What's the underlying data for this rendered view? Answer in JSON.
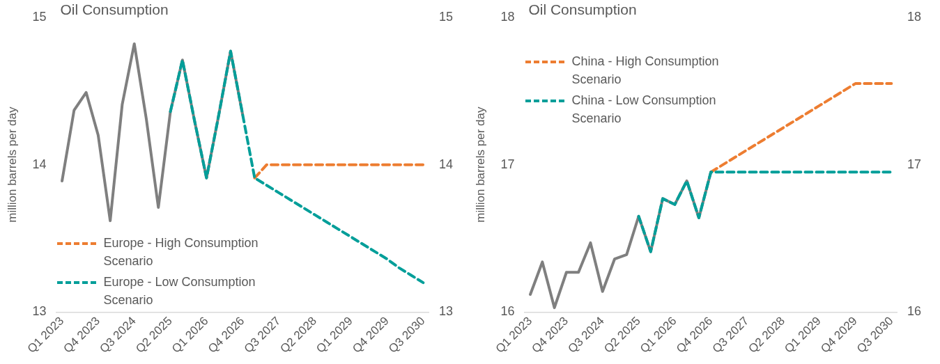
{
  "chart_data": [
    {
      "type": "line",
      "title": "Oil Consumption",
      "ylabel": "million barrels per day",
      "categories": [
        "Q1 2023",
        null,
        null,
        "Q4 2023",
        null,
        null,
        "Q3 2024",
        null,
        null,
        "Q2 2025",
        null,
        null,
        "Q1 2026",
        null,
        null,
        "Q4 2026",
        null,
        null,
        "Q3 2027",
        null,
        null,
        "Q2 2028",
        null,
        null,
        "Q1 2029",
        null,
        null,
        "Q4 2029",
        null,
        null,
        "Q3 2030"
      ],
      "ylim": [
        13,
        15
      ],
      "yticks": [
        13,
        14,
        15
      ],
      "y2lim": [
        13,
        15
      ],
      "y2ticks": [
        13,
        14,
        15
      ],
      "legend": "bottom left",
      "series": [
        {
          "color": "#7f7f7f",
          "line_style": "solid",
          "values": [
            13.89,
            14.37,
            14.49,
            14.2,
            13.62,
            14.41,
            14.82,
            14.31,
            13.71,
            14.36,
            14.71,
            14.3,
            13.91,
            14.33,
            14.77,
            14.34,
            null,
            null,
            null,
            null,
            null,
            null,
            null,
            null,
            null,
            null,
            null,
            null,
            null,
            null,
            null
          ]
        },
        {
          "name": "Europe - High Consumption Scenario",
          "color": "#ed7d31",
          "line_style": "dashed",
          "values": [
            null,
            null,
            null,
            null,
            null,
            null,
            null,
            null,
            null,
            null,
            null,
            null,
            null,
            null,
            null,
            null,
            13.91,
            14,
            14,
            14,
            14,
            14,
            14,
            14,
            14,
            14,
            14,
            14,
            14,
            14,
            14
          ]
        },
        {
          "name": "Europe - Low Consumption Scenario",
          "color": "#009e99",
          "line_style": "dashed",
          "values": [
            null,
            null,
            null,
            null,
            null,
            null,
            null,
            null,
            null,
            14.36,
            14.71,
            14.3,
            13.91,
            14.33,
            14.77,
            14.34,
            13.91,
            13.86,
            13.81,
            13.76,
            13.71,
            13.66,
            13.61,
            13.56,
            13.51,
            13.46,
            13.41,
            13.36,
            13.3,
            13.25,
            13.2
          ]
        }
      ]
    },
    {
      "type": "line",
      "title": "Oil Consumption",
      "ylabel": "million barrels per day",
      "categories": [
        "Q1 2023",
        null,
        null,
        "Q4 2023",
        null,
        null,
        "Q3 2024",
        null,
        null,
        "Q2 2025",
        null,
        null,
        "Q1 2026",
        null,
        null,
        "Q4 2026",
        null,
        null,
        "Q3 2027",
        null,
        null,
        "Q2 2028",
        null,
        null,
        "Q1 2029",
        null,
        null,
        "Q4 2029",
        null,
        null,
        "Q3 2030"
      ],
      "ylim": [
        16,
        18
      ],
      "yticks": [
        16,
        17,
        18
      ],
      "y2lim": [
        16,
        18
      ],
      "y2ticks": [
        16,
        17,
        18
      ],
      "legend": "top left",
      "series": [
        {
          "color": "#7f7f7f",
          "line_style": "solid",
          "values": [
            16.12,
            16.34,
            16.03,
            16.27,
            16.27,
            16.47,
            16.14,
            16.36,
            16.39,
            16.65,
            16.41,
            16.77,
            16.73,
            16.89,
            16.64,
            16.95,
            null,
            null,
            null,
            null,
            null,
            null,
            null,
            null,
            null,
            null,
            null,
            null,
            null,
            null,
            null
          ]
        },
        {
          "name": "China - High Consumption Scenario",
          "color": "#ed7d31",
          "line_style": "dashed",
          "values": [
            null,
            null,
            null,
            null,
            null,
            null,
            null,
            null,
            null,
            null,
            null,
            null,
            null,
            null,
            null,
            16.95,
            17,
            17.05,
            17.1,
            17.15,
            17.2,
            17.25,
            17.3,
            17.35,
            17.4,
            17.45,
            17.5,
            17.55,
            17.55,
            17.55,
            17.55
          ]
        },
        {
          "name": "China - Low Consumption Scenario",
          "color": "#009e99",
          "line_style": "dashed",
          "values": [
            null,
            null,
            null,
            null,
            null,
            null,
            null,
            null,
            null,
            16.65,
            16.41,
            16.77,
            16.73,
            16.89,
            16.64,
            16.95,
            16.95,
            16.95,
            16.95,
            16.95,
            16.95,
            16.95,
            16.95,
            16.95,
            16.95,
            16.95,
            16.95,
            16.95,
            16.95,
            16.95,
            16.95
          ]
        }
      ]
    }
  ]
}
